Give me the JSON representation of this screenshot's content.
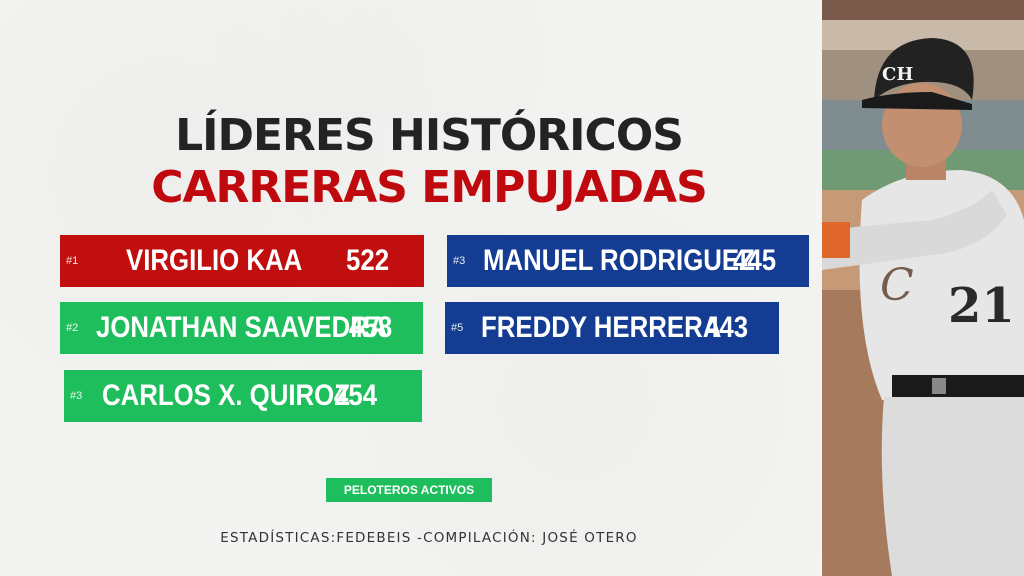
{
  "title": {
    "line1": "LÍDERES HISTÓRICOS",
    "line2": "CARRERAS EMPUJADAS"
  },
  "leaders_left": [
    {
      "rank": "#1",
      "name": "VIRGILIO KAA",
      "value": "522",
      "color": "red"
    },
    {
      "rank": "#2",
      "name": "JONATHAN SAAVEDRA",
      "value": "458",
      "color": "green"
    },
    {
      "rank": "#3",
      "name": "CARLOS X. QUIROZ",
      "value": "454",
      "color": "green"
    }
  ],
  "leaders_right": [
    {
      "rank": "#3",
      "name": "MANUEL RODRIGUEZ",
      "value": "445",
      "color": "blue"
    },
    {
      "rank": "#5",
      "name": "FREDDY HERRERA",
      "value": "443",
      "color": "blue"
    }
  ],
  "legend": {
    "active_label": "PELOTEROS ACTIVOS"
  },
  "credits": "ESTADÍSTICAS:FEDEBEIS -COMPILACIÓN: JOSÉ OTERO",
  "photo": {
    "helmet_text": "CH",
    "jersey_number": "21"
  },
  "colors": {
    "red": "#c10e0e",
    "green": "#1fbe5c",
    "blue": "#143c92",
    "title_dark": "#232323",
    "title_red": "#c0090e"
  }
}
